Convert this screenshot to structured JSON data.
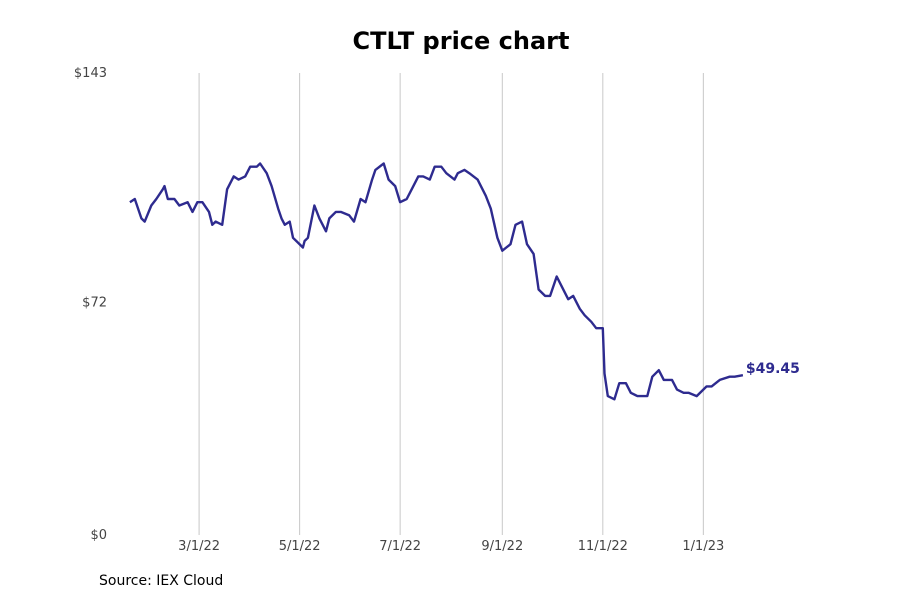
{
  "chart_data": {
    "type": "line",
    "title": "CTLT price chart",
    "xlabel": "",
    "ylabel": "",
    "source": "Source: IEX Cloud",
    "ylim": [
      0,
      143
    ],
    "y_ticks": [
      {
        "value": 0,
        "label": "$0"
      },
      {
        "value": 72,
        "label": "$72"
      },
      {
        "value": 143,
        "label": "$143"
      }
    ],
    "xlim": [
      "2022-01-12",
      "2023-03-31"
    ],
    "x_ticks": [
      {
        "date": "2022-03-01",
        "label": "3/1/22"
      },
      {
        "date": "2022-05-01",
        "label": "5/1/22"
      },
      {
        "date": "2022-07-01",
        "label": "7/1/22"
      },
      {
        "date": "2022-09-01",
        "label": "9/1/22"
      },
      {
        "date": "2022-11-01",
        "label": "11/1/22"
      },
      {
        "date": "2023-01-01",
        "label": "1/1/23"
      }
    ],
    "grid": "vertical",
    "line_color": "#2e2b8f",
    "last_label": "$49.45",
    "series": [
      {
        "values": [
          [
            "2022-01-18",
            103
          ],
          [
            "2022-01-21",
            104
          ],
          [
            "2022-01-25",
            98
          ],
          [
            "2022-01-27",
            97
          ],
          [
            "2022-01-31",
            102
          ],
          [
            "2022-02-03",
            104
          ],
          [
            "2022-02-07",
            107
          ],
          [
            "2022-02-08",
            108
          ],
          [
            "2022-02-10",
            104
          ],
          [
            "2022-02-14",
            104
          ],
          [
            "2022-02-17",
            102
          ],
          [
            "2022-02-22",
            103
          ],
          [
            "2022-02-25",
            100
          ],
          [
            "2022-02-28",
            103
          ],
          [
            "2022-03-03",
            103
          ],
          [
            "2022-03-07",
            100
          ],
          [
            "2022-03-09",
            96
          ],
          [
            "2022-03-11",
            97
          ],
          [
            "2022-03-15",
            96
          ],
          [
            "2022-03-18",
            107
          ],
          [
            "2022-03-22",
            111
          ],
          [
            "2022-03-25",
            110
          ],
          [
            "2022-03-29",
            111
          ],
          [
            "2022-04-01",
            114
          ],
          [
            "2022-04-05",
            114
          ],
          [
            "2022-04-07",
            115
          ],
          [
            "2022-04-11",
            112
          ],
          [
            "2022-04-14",
            108
          ],
          [
            "2022-04-18",
            101
          ],
          [
            "2022-04-20",
            98
          ],
          [
            "2022-04-22",
            96
          ],
          [
            "2022-04-25",
            97
          ],
          [
            "2022-04-27",
            92
          ],
          [
            "2022-04-29",
            91
          ],
          [
            "2022-05-03",
            89
          ],
          [
            "2022-05-04",
            91
          ],
          [
            "2022-05-06",
            92
          ],
          [
            "2022-05-10",
            102
          ],
          [
            "2022-05-13",
            98
          ],
          [
            "2022-05-17",
            94
          ],
          [
            "2022-05-19",
            98
          ],
          [
            "2022-05-23",
            100
          ],
          [
            "2022-05-26",
            100
          ],
          [
            "2022-05-31",
            99
          ],
          [
            "2022-06-03",
            97
          ],
          [
            "2022-06-07",
            104
          ],
          [
            "2022-06-10",
            103
          ],
          [
            "2022-06-14",
            110
          ],
          [
            "2022-06-16",
            113
          ],
          [
            "2022-06-21",
            115
          ],
          [
            "2022-06-24",
            110
          ],
          [
            "2022-06-28",
            108
          ],
          [
            "2022-07-01",
            103
          ],
          [
            "2022-07-05",
            104
          ],
          [
            "2022-07-08",
            107
          ],
          [
            "2022-07-12",
            111
          ],
          [
            "2022-07-15",
            111
          ],
          [
            "2022-07-19",
            110
          ],
          [
            "2022-07-22",
            114
          ],
          [
            "2022-07-26",
            114
          ],
          [
            "2022-07-29",
            112
          ],
          [
            "2022-08-03",
            110
          ],
          [
            "2022-08-05",
            112
          ],
          [
            "2022-08-09",
            113
          ],
          [
            "2022-08-12",
            112
          ],
          [
            "2022-08-17",
            110
          ],
          [
            "2022-08-22",
            105
          ],
          [
            "2022-08-25",
            101
          ],
          [
            "2022-08-29",
            92
          ],
          [
            "2022-09-01",
            88
          ],
          [
            "2022-09-06",
            90
          ],
          [
            "2022-09-09",
            96
          ],
          [
            "2022-09-13",
            97
          ],
          [
            "2022-09-16",
            90
          ],
          [
            "2022-09-20",
            87
          ],
          [
            "2022-09-23",
            76
          ],
          [
            "2022-09-27",
            74
          ],
          [
            "2022-09-30",
            74
          ],
          [
            "2022-10-04",
            80
          ],
          [
            "2022-10-07",
            77
          ],
          [
            "2022-10-11",
            73
          ],
          [
            "2022-10-14",
            74
          ],
          [
            "2022-10-18",
            70
          ],
          [
            "2022-10-21",
            68
          ],
          [
            "2022-10-25",
            66
          ],
          [
            "2022-10-28",
            64
          ],
          [
            "2022-11-01",
            64
          ],
          [
            "2022-11-02",
            50
          ],
          [
            "2022-11-04",
            43
          ],
          [
            "2022-11-08",
            42
          ],
          [
            "2022-11-11",
            47
          ],
          [
            "2022-11-15",
            47
          ],
          [
            "2022-11-18",
            44
          ],
          [
            "2022-11-22",
            43
          ],
          [
            "2022-11-28",
            43
          ],
          [
            "2022-12-01",
            49
          ],
          [
            "2022-12-05",
            51
          ],
          [
            "2022-12-08",
            48
          ],
          [
            "2022-12-13",
            48
          ],
          [
            "2022-12-16",
            45
          ],
          [
            "2022-12-20",
            44
          ],
          [
            "2022-12-23",
            44
          ],
          [
            "2022-12-28",
            43
          ],
          [
            "2023-01-03",
            46
          ],
          [
            "2023-01-06",
            46
          ],
          [
            "2023-01-11",
            48
          ],
          [
            "2023-01-17",
            49
          ],
          [
            "2023-01-20",
            49
          ],
          [
            "2023-01-25",
            49.45
          ]
        ]
      }
    ]
  }
}
